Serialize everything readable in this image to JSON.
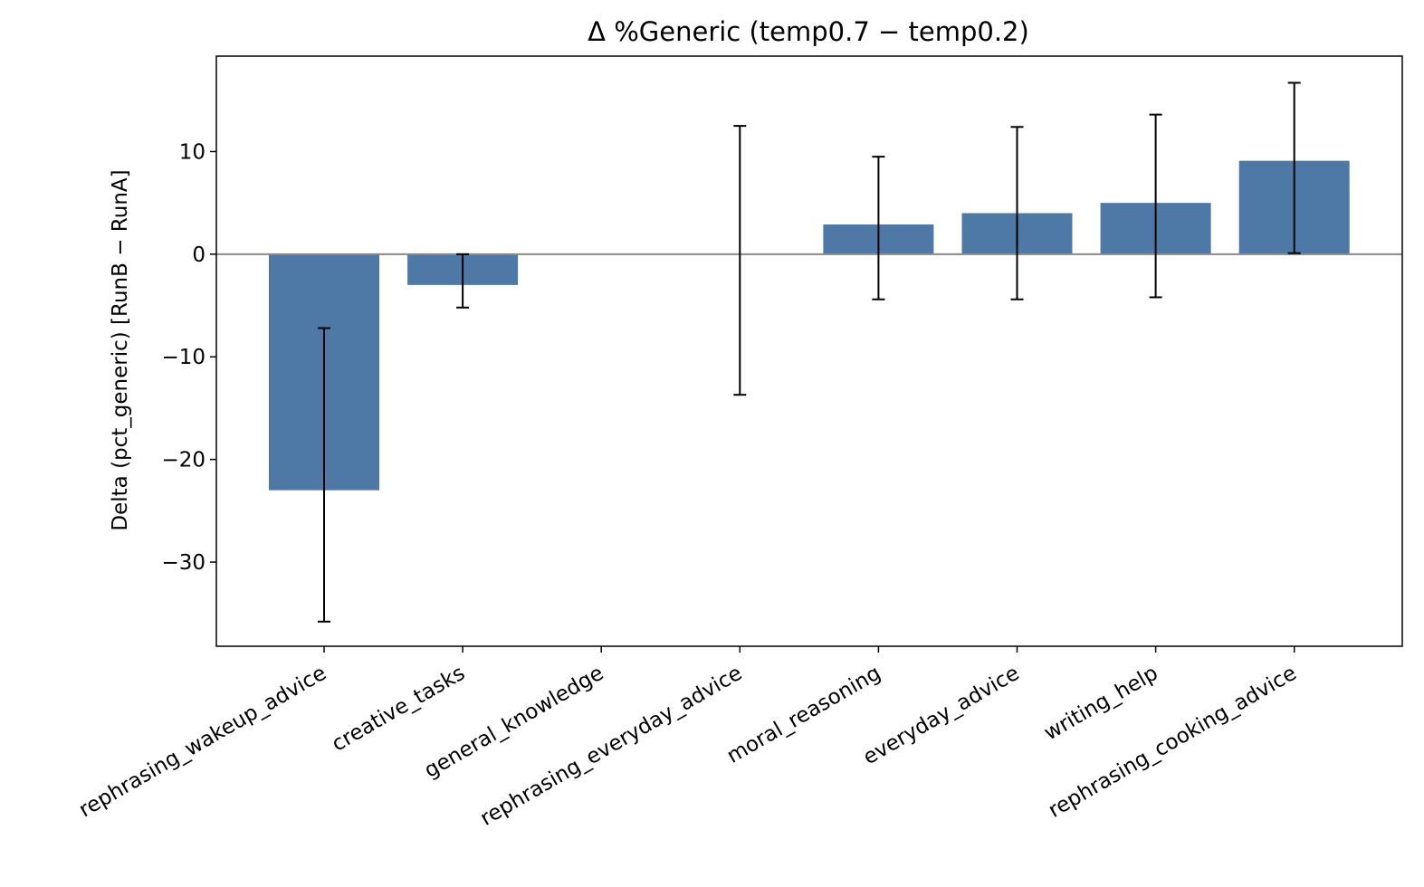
{
  "chart_data": {
    "type": "bar",
    "title": "Δ %Generic (temp0.7 − temp0.2)",
    "xlabel": "",
    "ylabel": "Delta (pct_generic)  [RunB − RunA]",
    "categories": [
      "rephrasing_wakeup_advice",
      "creative_tasks",
      "general_knowledge",
      "rephrasing_everyday_advice",
      "moral_reasoning",
      "everyday_advice",
      "writing_help",
      "rephrasing_cooking_advice"
    ],
    "values": [
      -23.0,
      -3.0,
      0.0,
      0.0,
      2.9,
      4.0,
      5.0,
      9.1
    ],
    "error_low": [
      -35.8,
      -5.2,
      0.0,
      -13.7,
      -4.4,
      -4.4,
      -4.2,
      0.1
    ],
    "error_high": [
      -7.2,
      0.0,
      0.0,
      12.5,
      9.5,
      12.4,
      13.6,
      16.7
    ],
    "yticks": [
      -30,
      -20,
      -10,
      0,
      10
    ],
    "ytick_labels": [
      "−30",
      "−20",
      "−10",
      "0",
      "10"
    ],
    "ylim": [
      -38.2,
      19.3
    ],
    "bar_color": "#4e79a7",
    "zero_line_color": "#888888",
    "grid": false,
    "legend": "none"
  }
}
